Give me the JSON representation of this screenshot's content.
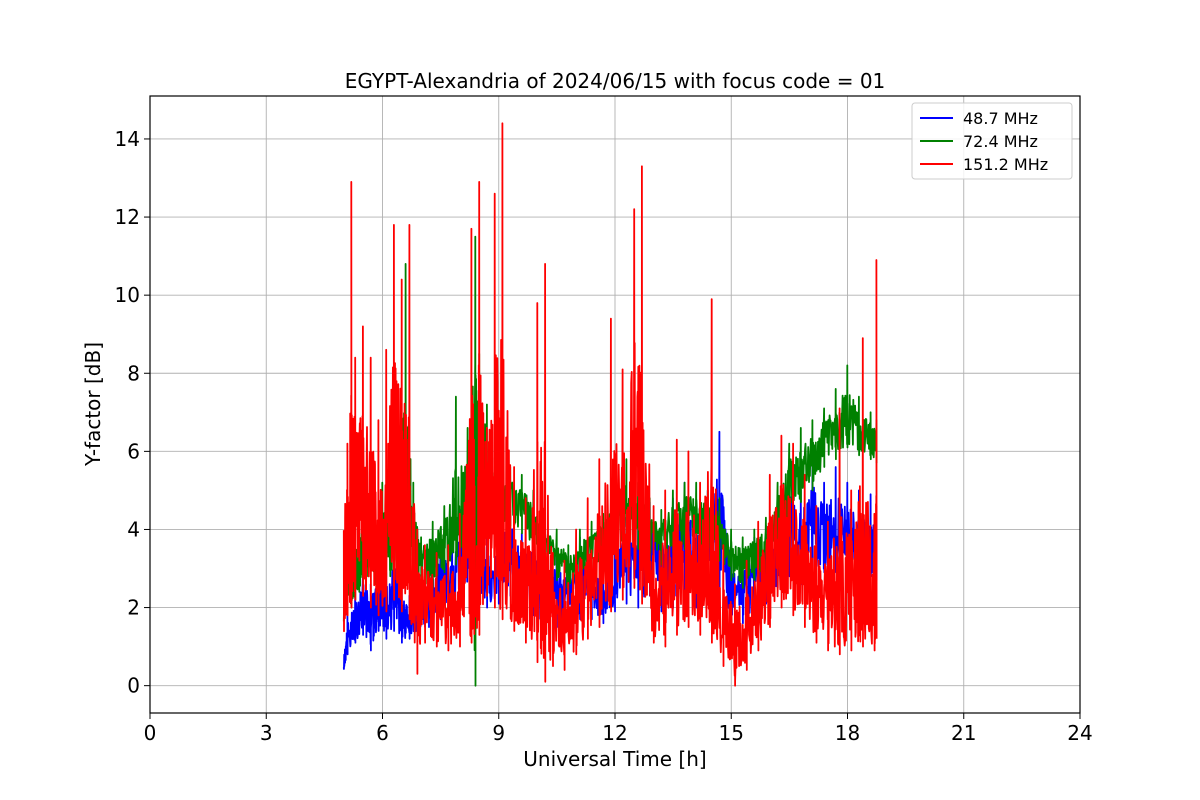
{
  "chart_data": {
    "type": "line",
    "title": "EGYPT-Alexandria of 2024/06/15 with focus code = 01",
    "xlabel": "Universal Time [h]",
    "ylabel": "Y-factor [dB]",
    "xlim": [
      0,
      24
    ],
    "ylim": [
      -0.7,
      15.1
    ],
    "xticks": [
      0,
      3,
      6,
      9,
      12,
      15,
      18,
      21,
      24
    ],
    "yticks": [
      0,
      2,
      4,
      6,
      8,
      10,
      12,
      14
    ],
    "grid": true,
    "legend_position": "top-right",
    "series": [
      {
        "name": "  48.7 MHz",
        "color": "#0000ff",
        "x": [
          5.0,
          5.1,
          5.3,
          5.5,
          5.7,
          5.9,
          6.1,
          6.3,
          6.5,
          6.7,
          6.9,
          7.2,
          7.5,
          7.8,
          8.0,
          8.3,
          8.5,
          8.7,
          9.0,
          9.3,
          9.6,
          9.9,
          10.2,
          10.5,
          10.8,
          11.1,
          11.4,
          11.7,
          12.0,
          12.3,
          12.6,
          12.9,
          13.2,
          13.5,
          13.8,
          14.1,
          14.4,
          14.7,
          15.0,
          15.3,
          15.6,
          15.9,
          16.2,
          16.5,
          16.8,
          17.1,
          17.4,
          17.7,
          18.0,
          18.3,
          18.6,
          18.75
        ],
        "y": [
          0.5,
          1.2,
          1.6,
          2.2,
          1.8,
          2.4,
          2.0,
          2.6,
          1.8,
          1.6,
          1.9,
          2.3,
          2.8,
          3.0,
          3.3,
          5.0,
          3.5,
          2.8,
          3.2,
          3.6,
          2.8,
          3.0,
          2.2,
          2.6,
          2.3,
          2.8,
          2.6,
          2.3,
          3.0,
          3.3,
          3.1,
          3.6,
          3.0,
          3.4,
          3.8,
          3.2,
          3.6,
          4.4,
          2.6,
          2.4,
          2.8,
          3.0,
          3.6,
          4.2,
          3.6,
          4.4,
          3.8,
          4.2,
          4.0,
          3.8,
          3.6,
          3.4
        ],
        "y_low": [
          0.4,
          0.8,
          1.1,
          1.3,
          0.9,
          1.4,
          1.2,
          1.4,
          1.1,
          1.2,
          1.3,
          1.5,
          1.7,
          1.9,
          2.0,
          2.2,
          2.3,
          2.0,
          2.1,
          2.3,
          1.9,
          1.8,
          1.3,
          1.5,
          1.5,
          1.7,
          1.7,
          1.6,
          1.9,
          2.1,
          2.0,
          2.3,
          1.9,
          2.0,
          2.3,
          2.0,
          2.2,
          2.3,
          1.6,
          1.6,
          1.9,
          2.1,
          2.5,
          2.8,
          2.6,
          2.9,
          2.9,
          2.9,
          2.7,
          2.8,
          2.8,
          2.7
        ],
        "y_high": [
          0.9,
          1.9,
          2.6,
          3.3,
          2.6,
          3.0,
          2.9,
          3.6,
          2.8,
          2.3,
          2.6,
          3.2,
          3.6,
          4.0,
          4.5,
          6.5,
          5.0,
          3.8,
          4.2,
          4.6,
          3.9,
          4.1,
          3.0,
          3.5,
          3.2,
          3.8,
          3.5,
          3.2,
          4.0,
          4.3,
          4.0,
          4.7,
          4.1,
          4.8,
          5.2,
          4.6,
          5.0,
          6.5,
          3.5,
          3.4,
          3.8,
          4.1,
          4.8,
          5.8,
          5.0,
          5.8,
          5.2,
          5.6,
          5.2,
          5.0,
          4.9,
          4.6
        ]
      },
      {
        "name": "  72.4 MHz",
        "color": "#008000",
        "x": [
          5.0,
          5.2,
          5.4,
          5.6,
          5.8,
          6.0,
          6.2,
          6.4,
          6.6,
          6.8,
          7.0,
          7.3,
          7.6,
          7.9,
          8.2,
          8.4,
          8.5,
          8.7,
          9.0,
          9.3,
          9.6,
          9.9,
          10.2,
          10.5,
          10.8,
          11.1,
          11.4,
          11.7,
          12.0,
          12.3,
          12.6,
          12.9,
          13.2,
          13.5,
          13.8,
          14.1,
          14.4,
          14.7,
          15.0,
          15.3,
          15.6,
          15.9,
          16.2,
          16.5,
          16.8,
          17.1,
          17.4,
          17.7,
          18.0,
          18.3,
          18.6,
          18.75
        ],
        "y": [
          2.0,
          2.8,
          3.2,
          3.8,
          3.4,
          4.0,
          3.6,
          4.2,
          4.6,
          3.8,
          3.2,
          3.4,
          3.8,
          4.0,
          4.4,
          5.6,
          6.4,
          5.6,
          4.8,
          4.8,
          4.6,
          4.2,
          3.6,
          3.4,
          3.0,
          3.4,
          3.6,
          3.8,
          4.2,
          4.8,
          4.4,
          4.0,
          3.8,
          4.2,
          4.4,
          4.4,
          4.2,
          4.0,
          3.4,
          3.2,
          3.4,
          3.6,
          4.4,
          5.2,
          5.6,
          5.8,
          6.4,
          6.6,
          7.0,
          6.6,
          6.4,
          6.2
        ],
        "y_low": [
          1.5,
          2.0,
          2.4,
          2.8,
          2.6,
          3.0,
          2.8,
          3.1,
          3.3,
          2.8,
          2.4,
          2.5,
          2.9,
          3.1,
          3.3,
          0.0,
          4.6,
          4.2,
          4.0,
          4.1,
          3.9,
          3.5,
          2.9,
          2.7,
          2.4,
          2.7,
          2.9,
          3.1,
          3.4,
          3.8,
          3.5,
          3.2,
          3.1,
          3.4,
          3.5,
          3.5,
          3.4,
          3.2,
          2.7,
          2.5,
          2.7,
          2.9,
          3.6,
          4.3,
          4.7,
          5.0,
          5.6,
          5.8,
          6.1,
          5.9,
          5.8,
          5.7
        ],
        "y_high": [
          2.6,
          3.6,
          4.2,
          5.0,
          4.4,
          5.2,
          4.6,
          5.6,
          10.8,
          5.2,
          3.8,
          4.2,
          4.6,
          7.4,
          6.6,
          11.5,
          8.5,
          7.2,
          5.5,
          5.6,
          5.4,
          5.0,
          4.2,
          4.0,
          3.6,
          4.0,
          4.2,
          4.4,
          5.0,
          5.8,
          5.2,
          4.8,
          4.5,
          5.0,
          5.2,
          5.2,
          5.0,
          4.8,
          4.0,
          3.8,
          4.0,
          4.3,
          5.2,
          6.2,
          6.6,
          6.8,
          7.1,
          7.6,
          8.2,
          7.4,
          7.0,
          6.8
        ]
      },
      {
        "name": " 151.2 MHz",
        "color": "#ff0000",
        "x": [
          5.0,
          5.1,
          5.2,
          5.3,
          5.5,
          5.7,
          5.9,
          6.1,
          6.3,
          6.5,
          6.7,
          6.9,
          7.1,
          7.4,
          7.7,
          8.0,
          8.3,
          8.5,
          8.7,
          8.9,
          9.1,
          9.4,
          9.7,
          10.0,
          10.2,
          10.4,
          10.7,
          11.0,
          11.3,
          11.6,
          11.9,
          12.2,
          12.5,
          12.7,
          13.0,
          13.3,
          13.6,
          13.9,
          14.2,
          14.5,
          14.8,
          15.1,
          15.4,
          15.7,
          16.0,
          16.3,
          16.6,
          16.9,
          17.2,
          17.5,
          17.8,
          18.1,
          18.4,
          18.7,
          18.75
        ],
        "y": [
          2.5,
          3.6,
          4.0,
          4.2,
          4.4,
          4.0,
          3.6,
          3.8,
          4.6,
          4.0,
          3.4,
          2.2,
          2.4,
          2.0,
          2.0,
          2.2,
          2.4,
          3.0,
          4.6,
          3.8,
          3.2,
          2.8,
          2.4,
          2.2,
          1.4,
          1.8,
          1.8,
          2.0,
          2.6,
          3.0,
          3.6,
          4.4,
          5.0,
          4.2,
          2.4,
          2.2,
          2.8,
          3.0,
          2.6,
          2.4,
          1.6,
          1.0,
          1.4,
          2.0,
          3.0,
          3.8,
          3.6,
          3.0,
          2.4,
          2.2,
          2.0,
          2.0,
          2.2,
          1.8,
          2.2
        ],
        "y_low": [
          1.2,
          1.8,
          2.0,
          2.2,
          2.3,
          2.0,
          1.8,
          1.9,
          2.2,
          1.9,
          1.7,
          0.3,
          1.1,
          1.0,
          0.9,
          1.0,
          1.1,
          1.3,
          2.3,
          2.0,
          1.7,
          1.4,
          1.1,
          0.6,
          0.1,
          0.5,
          0.4,
          0.8,
          1.2,
          1.5,
          1.9,
          2.2,
          2.5,
          2.1,
          1.1,
          1.0,
          1.3,
          1.5,
          1.3,
          1.1,
          0.5,
          0.0,
          0.4,
          0.9,
          1.5,
          2.0,
          1.8,
          1.5,
          1.1,
          0.9,
          0.8,
          0.9,
          1.0,
          0.9,
          1.2
        ],
        "y_high": [
          6.9,
          6.2,
          12.9,
          8.4,
          9.2,
          8.4,
          6.8,
          8.6,
          11.8,
          10.4,
          11.8,
          4.0,
          3.6,
          3.4,
          3.6,
          4.4,
          11.7,
          12.9,
          6.6,
          12.6,
          14.4,
          5.6,
          4.8,
          9.8,
          10.8,
          3.4,
          3.2,
          4.0,
          4.8,
          5.8,
          9.4,
          8.1,
          12.2,
          13.3,
          4.6,
          5.0,
          6.3,
          6.0,
          5.2,
          9.9,
          3.6,
          2.6,
          3.2,
          4.2,
          5.4,
          6.4,
          6.2,
          5.4,
          4.6,
          4.2,
          7.1,
          5.0,
          8.9,
          4.4,
          10.9
        ]
      }
    ]
  }
}
